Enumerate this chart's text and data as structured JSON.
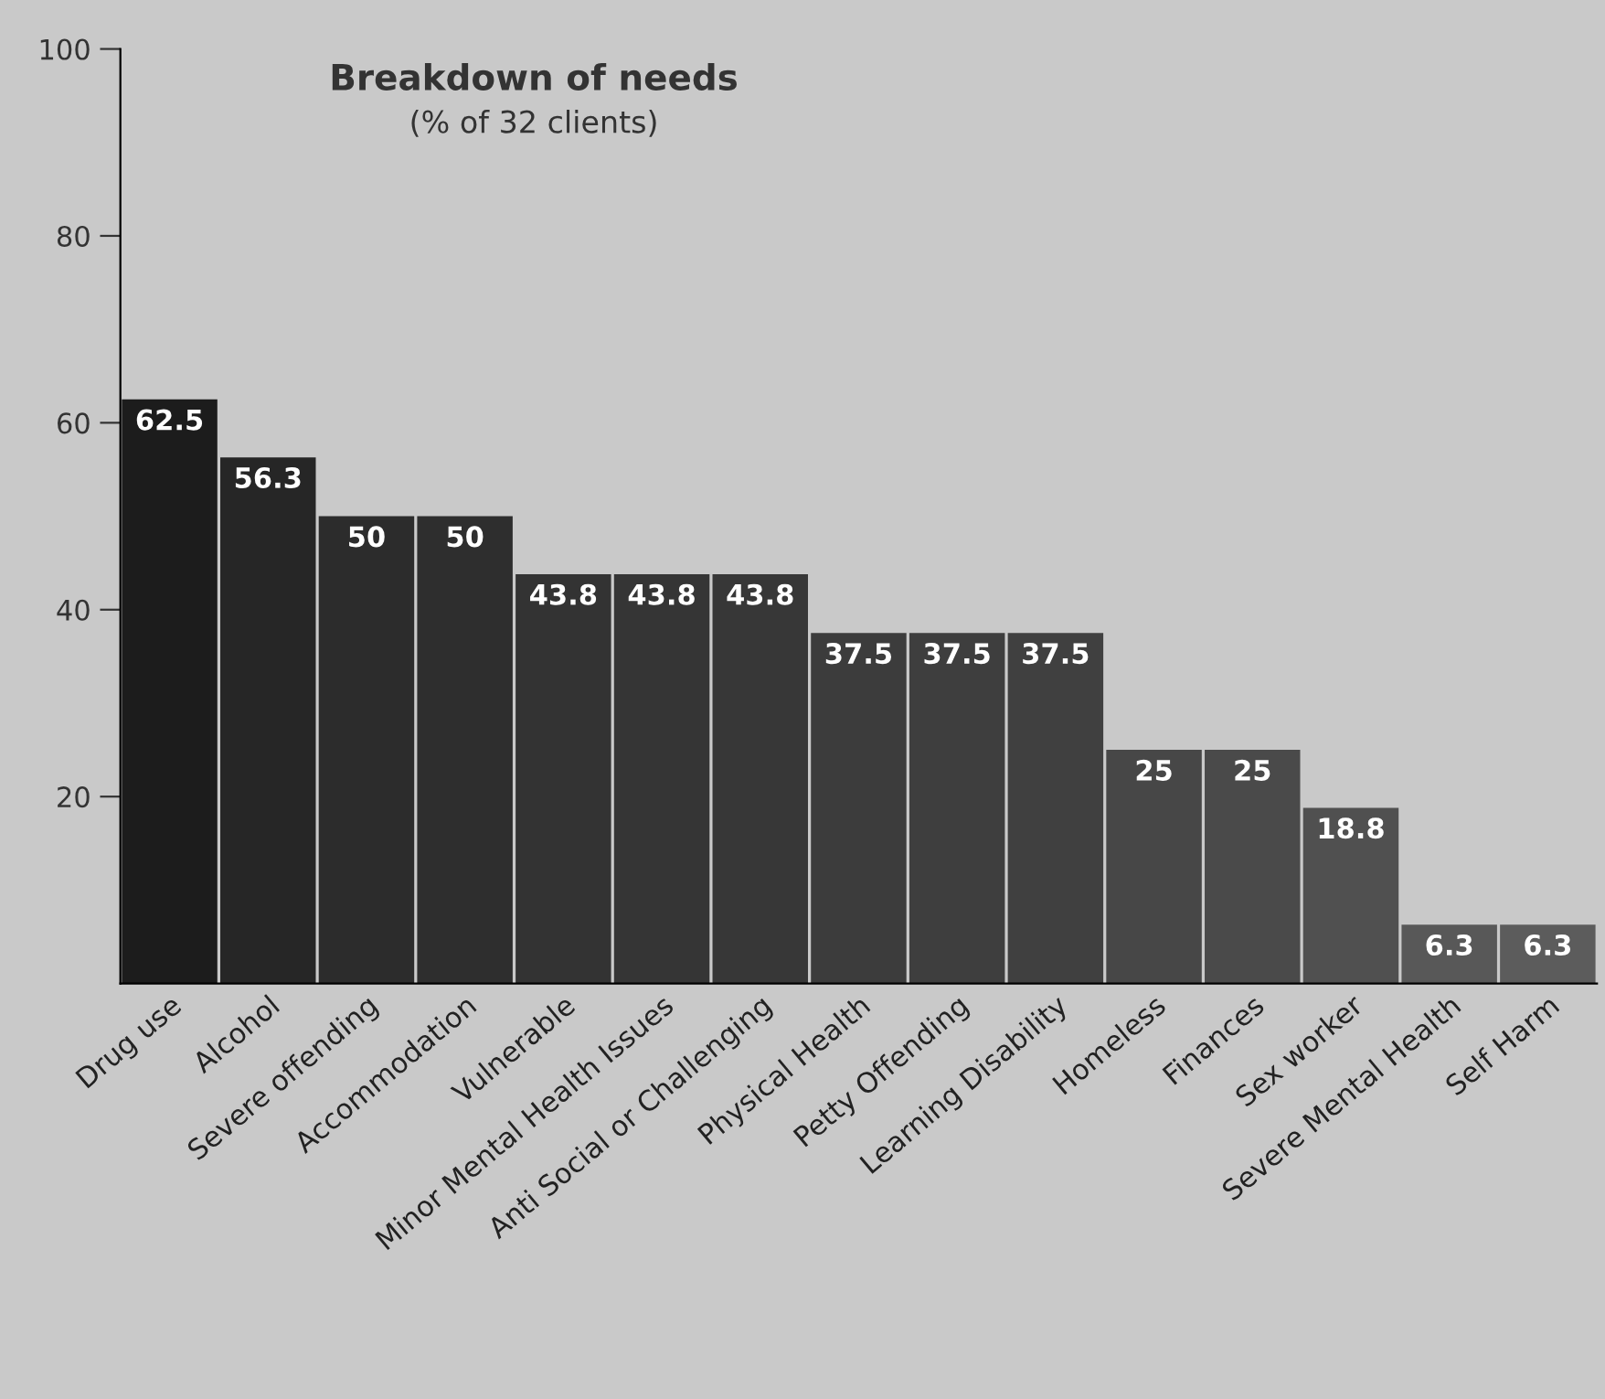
{
  "chart_data": {
    "type": "bar",
    "title": "Breakdown of needs",
    "subtitle": "(% of 32 clients)",
    "categories": [
      "Drug use",
      "Alcohol",
      "Severe offending",
      "Accommodation",
      "Vulnerable",
      "Minor Mental Health Issues",
      "Anti Social or Challenging",
      "Physical Health",
      "Petty Offending",
      "Learning Disability",
      "Homeless",
      "Finances",
      "Sex worker",
      "Severe Mental Health",
      "Self Harm"
    ],
    "values": [
      62.5,
      56.3,
      50,
      50,
      43.8,
      43.8,
      43.8,
      37.5,
      37.5,
      37.5,
      25,
      25,
      18.8,
      6.3,
      6.3
    ],
    "colors": [
      "#1c1c1c",
      "#262626",
      "#2c2c2c",
      "#2e2e2e",
      "#333333",
      "#353535",
      "#373737",
      "#3c3c3c",
      "#3e3e3e",
      "#404040",
      "#474747",
      "#4a4a4a",
      "#505050",
      "#585858",
      "#5c5c5c"
    ],
    "ylim": [
      0,
      100
    ],
    "yticks": [
      20,
      40,
      60,
      80,
      100
    ],
    "grid": false,
    "data_labels": true
  }
}
